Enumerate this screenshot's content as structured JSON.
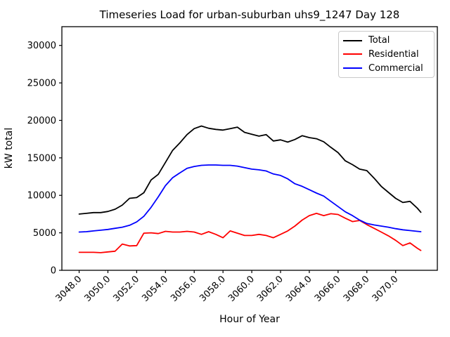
{
  "chart_data": {
    "type": "line",
    "title": "Timeseries Load for urban-suburban uhs9_1247  Day 128",
    "xlabel": "Hour of Year",
    "ylabel": "kW total",
    "xlim": [
      3046.8,
      3072.9
    ],
    "ylim": [
      0,
      32500
    ],
    "grid": false,
    "legend_position": "upper right",
    "xtick_labels": [
      "3048.0",
      "3050.0",
      "3052.0",
      "3054.0",
      "3056.0",
      "3058.0",
      "3060.0",
      "3062.0",
      "3064.0",
      "3066.0",
      "3068.0",
      "3070.0"
    ],
    "xtick_values": [
      3048,
      3050,
      3052,
      3054,
      3056,
      3058,
      3060,
      3062,
      3064,
      3066,
      3068,
      3070
    ],
    "ytick_labels": [
      "0",
      "5000",
      "10000",
      "15000",
      "20000",
      "25000",
      "30000"
    ],
    "ytick_values": [
      0,
      5000,
      10000,
      15000,
      20000,
      25000,
      30000
    ],
    "x": [
      3048.0,
      3048.5,
      3049.0,
      3049.5,
      3050.0,
      3050.5,
      3051.0,
      3051.5,
      3052.0,
      3052.5,
      3053.0,
      3053.5,
      3054.0,
      3054.5,
      3055.0,
      3055.5,
      3056.0,
      3056.5,
      3057.0,
      3057.5,
      3058.0,
      3058.5,
      3059.0,
      3059.5,
      3060.0,
      3060.5,
      3061.0,
      3061.5,
      3062.0,
      3062.5,
      3063.0,
      3063.5,
      3064.0,
      3064.5,
      3065.0,
      3065.5,
      3066.0,
      3066.5,
      3067.0,
      3067.5,
      3068.0,
      3068.5,
      3069.0,
      3069.5,
      3070.0,
      3070.5,
      3071.0,
      3071.5,
      3071.75
    ],
    "series": [
      {
        "name": "Total",
        "color": "#000000",
        "values": [
          7500,
          7600,
          7700,
          7700,
          7850,
          8150,
          8700,
          9600,
          9700,
          10350,
          12050,
          12800,
          14400,
          16000,
          17000,
          18100,
          18900,
          19250,
          18950,
          18800,
          18700,
          18900,
          19100,
          18400,
          18150,
          17900,
          18100,
          17250,
          17400,
          17100,
          17450,
          17950,
          17700,
          17550,
          17150,
          16400,
          15700,
          14600,
          14100,
          13500,
          13300,
          12300,
          11200,
          10400,
          9600,
          9050,
          9200,
          8300,
          7750
        ]
      },
      {
        "name": "Residential",
        "color": "#ff0000",
        "values": [
          2400,
          2400,
          2400,
          2350,
          2450,
          2550,
          3500,
          3250,
          3300,
          4950,
          5000,
          4900,
          5200,
          5100,
          5100,
          5200,
          5100,
          4800,
          5150,
          4800,
          4350,
          5250,
          4950,
          4650,
          4650,
          4800,
          4650,
          4350,
          4800,
          5250,
          5900,
          6700,
          7300,
          7600,
          7300,
          7550,
          7450,
          6950,
          6500,
          6650,
          6100,
          5600,
          5100,
          4600,
          4000,
          3300,
          3650,
          2950,
          2650
        ]
      },
      {
        "name": "Commercial",
        "color": "#0000ff",
        "values": [
          5100,
          5150,
          5250,
          5350,
          5450,
          5600,
          5750,
          6000,
          6450,
          7200,
          8400,
          9800,
          11300,
          12350,
          13000,
          13600,
          13850,
          14000,
          14050,
          14050,
          14000,
          14000,
          13900,
          13700,
          13500,
          13400,
          13250,
          12850,
          12650,
          12200,
          11550,
          11200,
          10750,
          10300,
          9900,
          9200,
          8500,
          7800,
          7300,
          6700,
          6250,
          6050,
          5900,
          5750,
          5550,
          5400,
          5300,
          5200,
          5150
        ]
      }
    ]
  }
}
